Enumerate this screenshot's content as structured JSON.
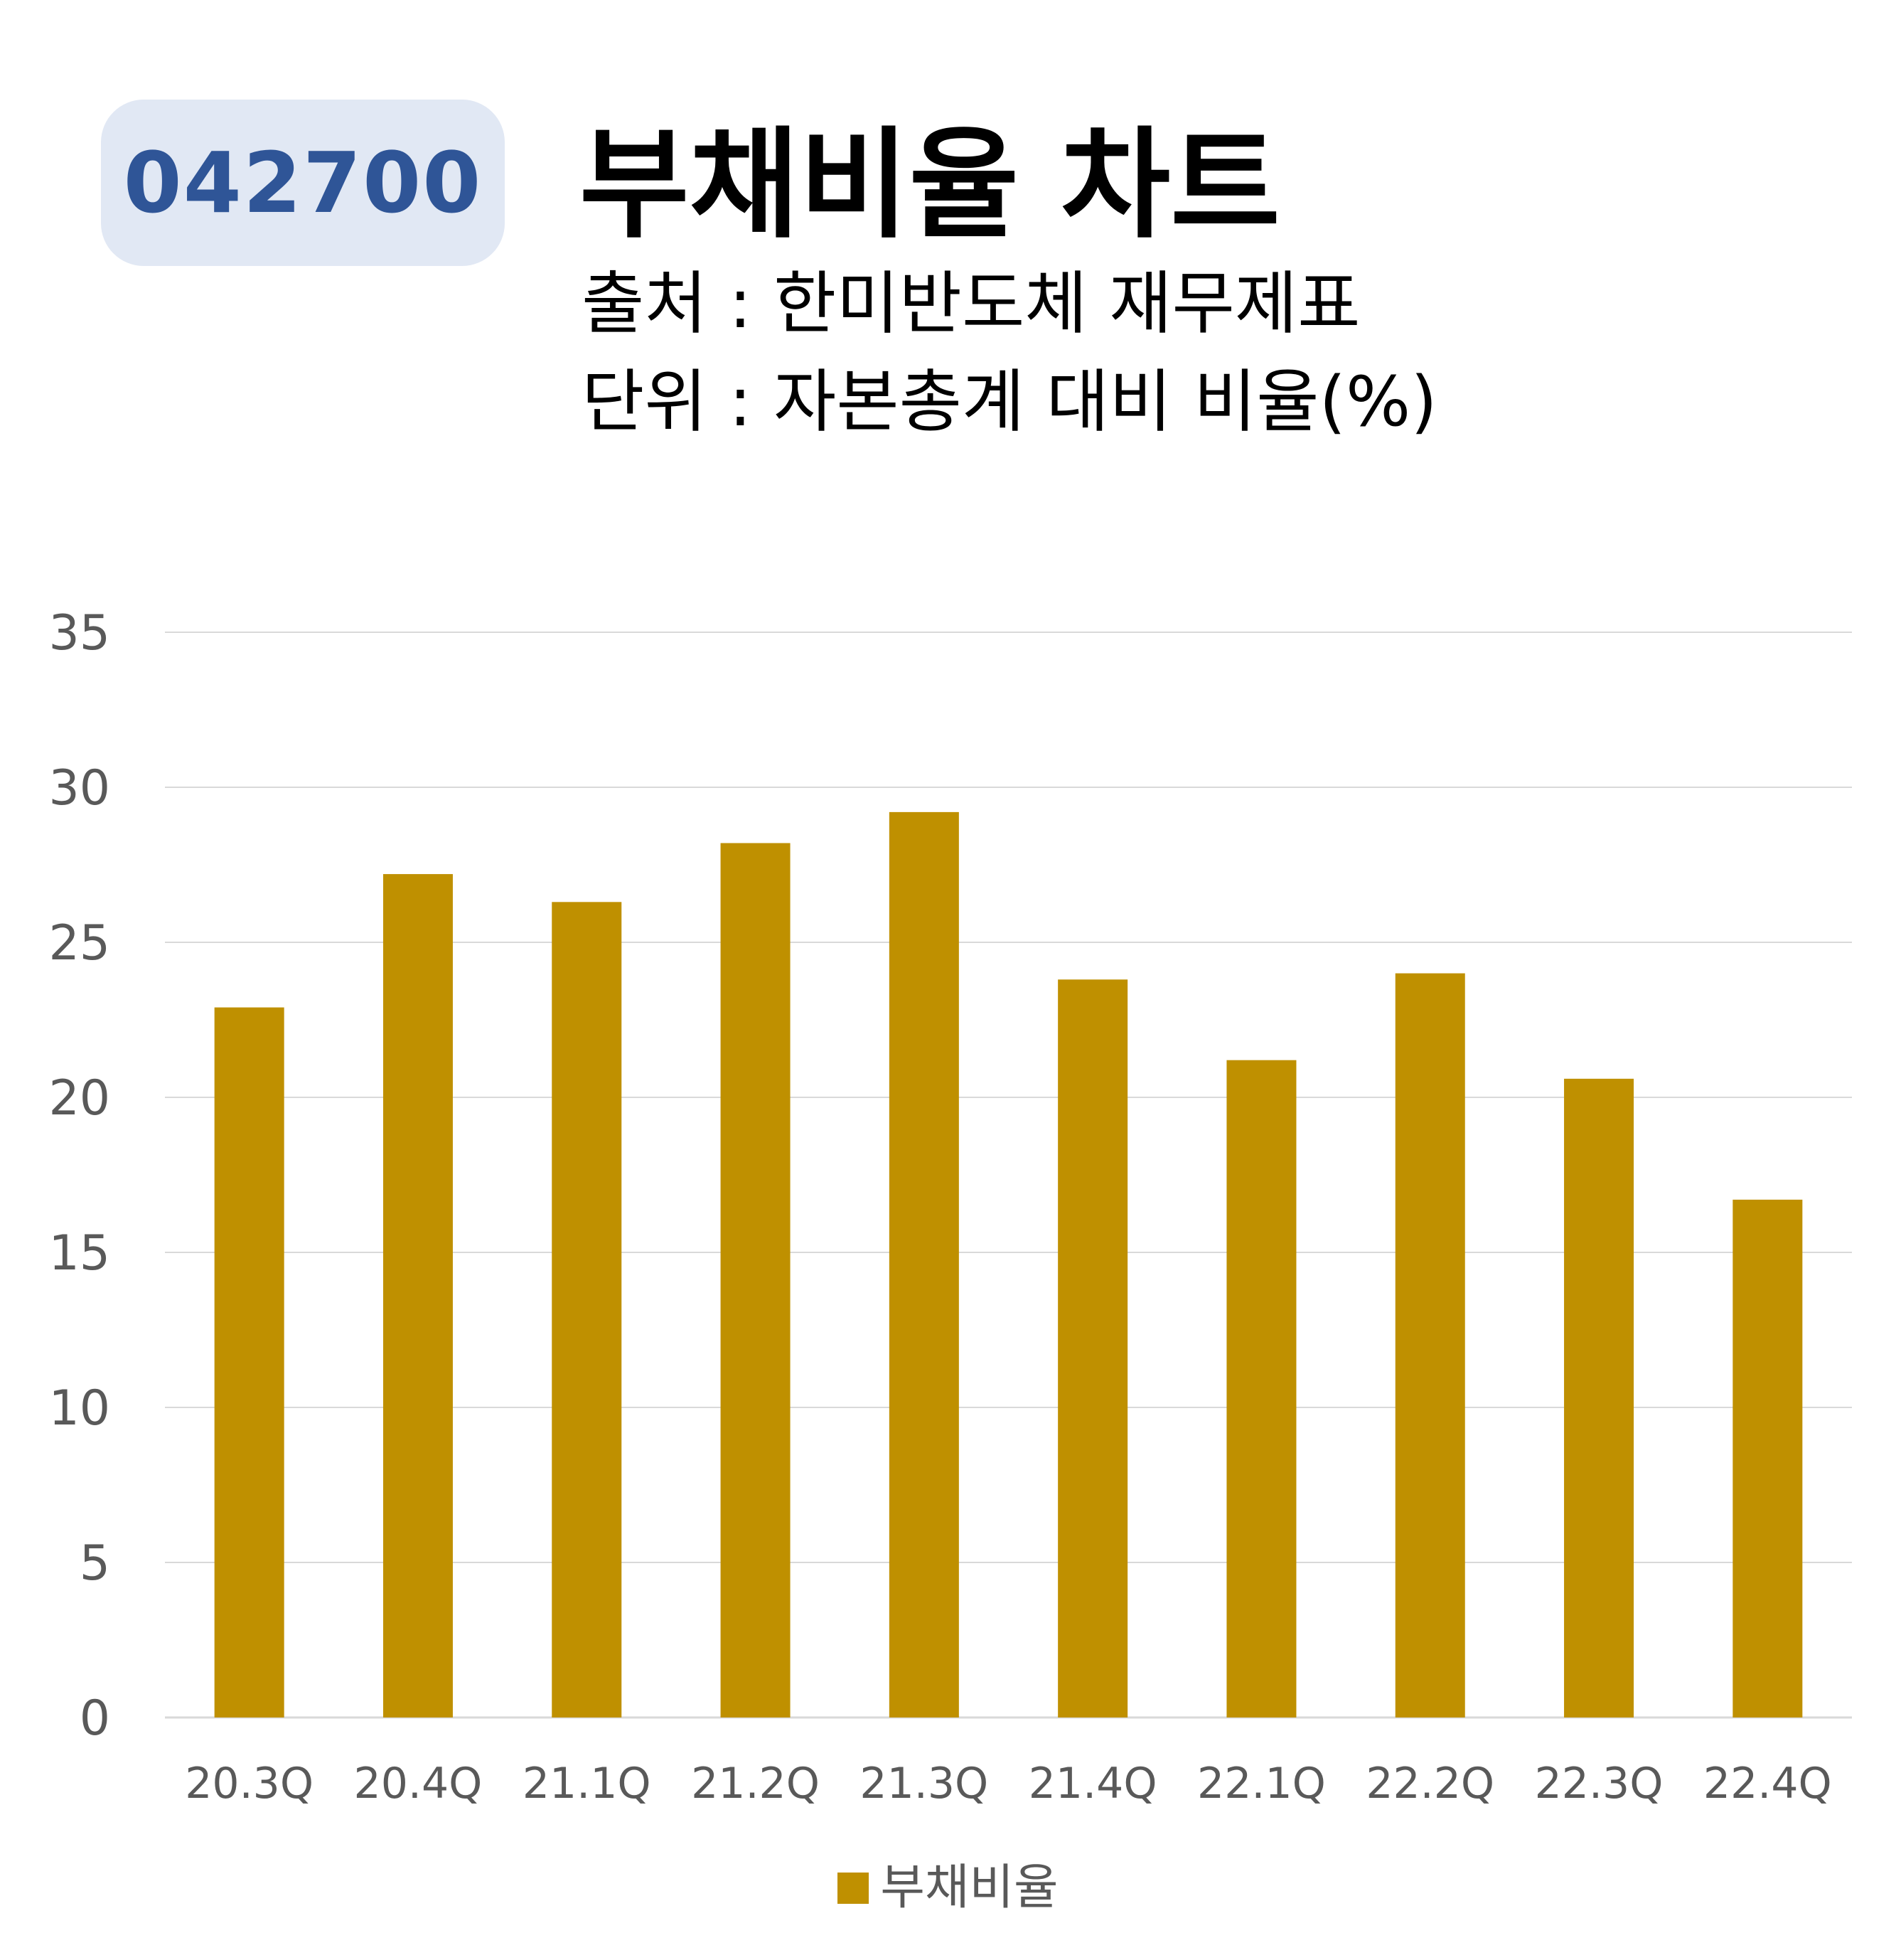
{
  "header": {
    "code": "042700",
    "title": "부채비율 차트",
    "source": "출처 : 한미반도체 재무제표",
    "unit": "단위 : 자본총계 대비 비율(%)"
  },
  "colors": {
    "bar": "#bf9000",
    "badge_bg": "#e1e8f4",
    "badge_text": "#2f5597",
    "grid": "#d9d9d9",
    "tick_text": "#595959"
  },
  "chart_data": {
    "type": "bar",
    "categories": [
      "20.3Q",
      "20.4Q",
      "21.1Q",
      "21.2Q",
      "21.3Q",
      "21.4Q",
      "22.1Q",
      "22.2Q",
      "22.3Q",
      "22.4Q"
    ],
    "series": [
      {
        "name": "부채비율",
        "values": [
          22.9,
          27.2,
          26.3,
          28.2,
          29.2,
          23.8,
          21.2,
          24.0,
          20.6,
          16.7
        ]
      }
    ],
    "ylim": [
      0,
      35
    ],
    "yticks": [
      0,
      5,
      10,
      15,
      20,
      25,
      30,
      35
    ],
    "grid": true,
    "legend_position": "bottom"
  }
}
